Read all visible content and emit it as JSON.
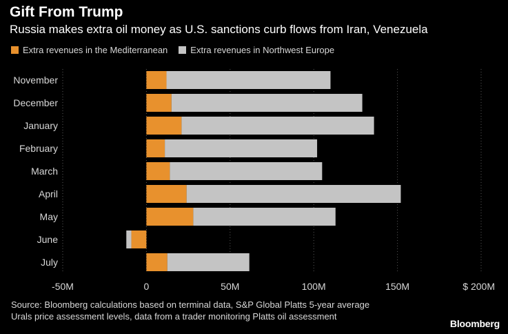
{
  "title": "Gift From Trump",
  "subtitle": "Russia makes extra oil money as U.S. sanctions curb flows from Iran, Venezuela",
  "legend": [
    {
      "label": "Extra revenues in the Mediterranean",
      "color": "#e8912d"
    },
    {
      "label": "Extra revenues in Northwest Europe",
      "color": "#c4c4c4"
    }
  ],
  "source_line1": "Source: Bloomberg calculations based on terminal data, S&P Global Platts 5-year average",
  "source_line2": "Urals price assessment levels, data from a trader monitoring Platts oil assessment",
  "logo": "Bloomberg",
  "chart_data": {
    "type": "bar",
    "orientation": "horizontal",
    "stacked": true,
    "categories": [
      "November",
      "December",
      "January",
      "February",
      "March",
      "April",
      "May",
      "June",
      "July"
    ],
    "series": [
      {
        "name": "Extra revenues in the Mediterranean",
        "color": "#e8912d",
        "values": [
          12,
          15,
          21,
          11,
          14,
          24,
          28,
          -9,
          12.5
        ]
      },
      {
        "name": "Extra revenues in Northwest Europe",
        "color": "#c4c4c4",
        "values": [
          98,
          114,
          115,
          91,
          91,
          128,
          85,
          -3,
          49
        ]
      }
    ],
    "xlim": [
      -50,
      200
    ],
    "xticks": [
      -50,
      0,
      50,
      100,
      150,
      200
    ],
    "xtick_labels": [
      "-50M",
      "0",
      "50M",
      "100M",
      "150M",
      "$ 200M"
    ],
    "grid": "vertical dotted"
  }
}
